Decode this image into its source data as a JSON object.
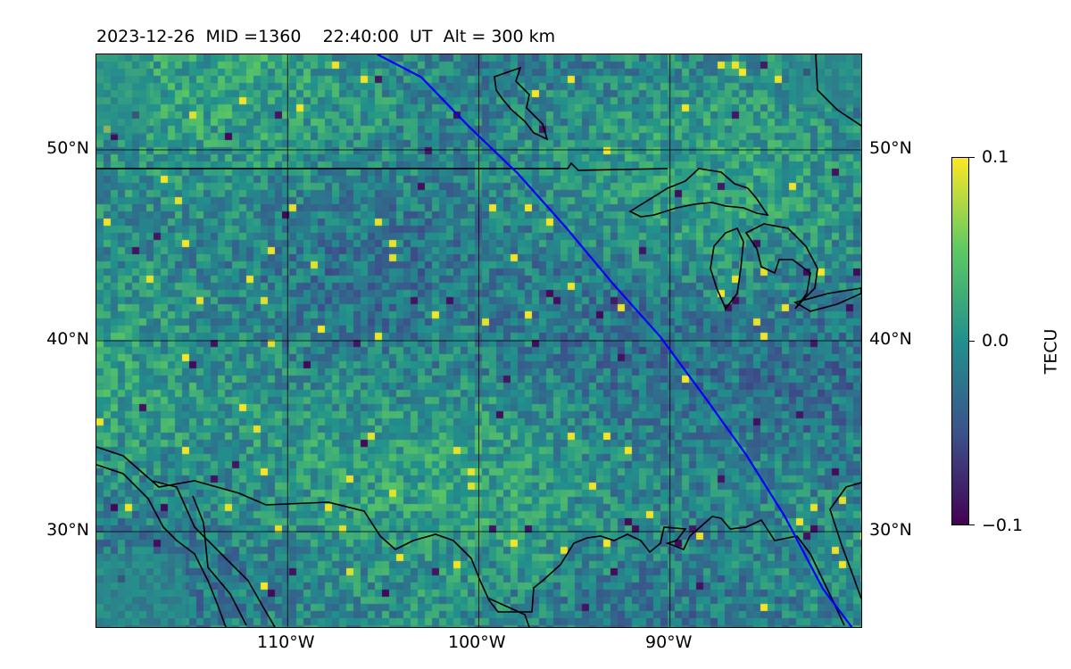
{
  "header": {
    "title": "2023-12-26  MID =1360    22:40:00  UT  Alt = 300 km"
  },
  "map": {
    "lat_range": [
      25,
      55
    ],
    "lon_range": [
      -120,
      -80
    ],
    "lat_labels": [
      "50°N",
      "40°N",
      "30°N"
    ],
    "lon_labels": [
      "110°W",
      "100°W",
      "90°W"
    ],
    "field": "TEC perturbation map over North America",
    "coastline_color": "#000000",
    "track_color": "#0000ff",
    "satellite_track": [
      {
        "lon": -105.3,
        "lat": 55.0
      },
      {
        "lon": -103.0,
        "lat": 53.8
      },
      {
        "lon": -100.5,
        "lat": 51.2
      },
      {
        "lon": -98.0,
        "lat": 48.8
      },
      {
        "lon": -95.5,
        "lat": 46.0
      },
      {
        "lon": -93.0,
        "lat": 43.0
      },
      {
        "lon": -90.5,
        "lat": 40.2
      },
      {
        "lon": -88.0,
        "lat": 36.8
      },
      {
        "lon": -86.0,
        "lat": 34.0
      },
      {
        "lon": -84.0,
        "lat": 30.8
      },
      {
        "lon": -82.0,
        "lat": 27.0
      },
      {
        "lon": -80.5,
        "lat": 25.0
      }
    ]
  },
  "colorbar": {
    "title": "TECU",
    "max_label": "0.1",
    "mid_label": "0.0",
    "min_label": "−0.1",
    "stops": [
      "#440154",
      "#3b528b",
      "#21908d",
      "#5dc963",
      "#fde725"
    ]
  }
}
